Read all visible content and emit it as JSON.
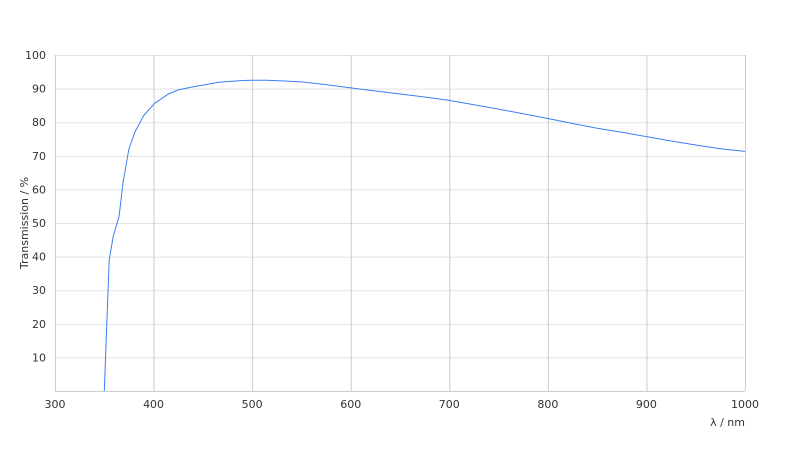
{
  "chart_data": {
    "type": "line",
    "title": "",
    "xlabel": "λ / nm",
    "ylabel": "Transmission / %",
    "xlim": [
      300,
      1000
    ],
    "ylim": [
      0,
      100
    ],
    "xticks": [
      300,
      400,
      500,
      600,
      700,
      800,
      900,
      1000
    ],
    "yticks": [
      10,
      20,
      30,
      40,
      50,
      60,
      70,
      80,
      90,
      100
    ],
    "grid": true,
    "line_color": "#3b7ff2",
    "series": [
      {
        "x": [
          350,
          355,
          359,
          365,
          369,
          375,
          381,
          390,
          401,
          415,
          425,
          440,
          455,
          466,
          480,
          491,
          500,
          515,
          530,
          550,
          575,
          600,
          625,
          650,
          675,
          700,
          725,
          750,
          775,
          800,
          825,
          850,
          875,
          900,
          925,
          950,
          975,
          1000
        ],
        "y": [
          0,
          39,
          46,
          52,
          62,
          72,
          77,
          82,
          85.6,
          88.4,
          89.6,
          90.5,
          91.3,
          91.9,
          92.2,
          92.4,
          92.5,
          92.5,
          92.3,
          92,
          91.2,
          90.2,
          89.3,
          88.4,
          87.5,
          86.5,
          85.2,
          83.9,
          82.5,
          81.1,
          79.6,
          78.2,
          77,
          75.7,
          74.4,
          73.2,
          72.1,
          71.3
        ]
      }
    ]
  }
}
